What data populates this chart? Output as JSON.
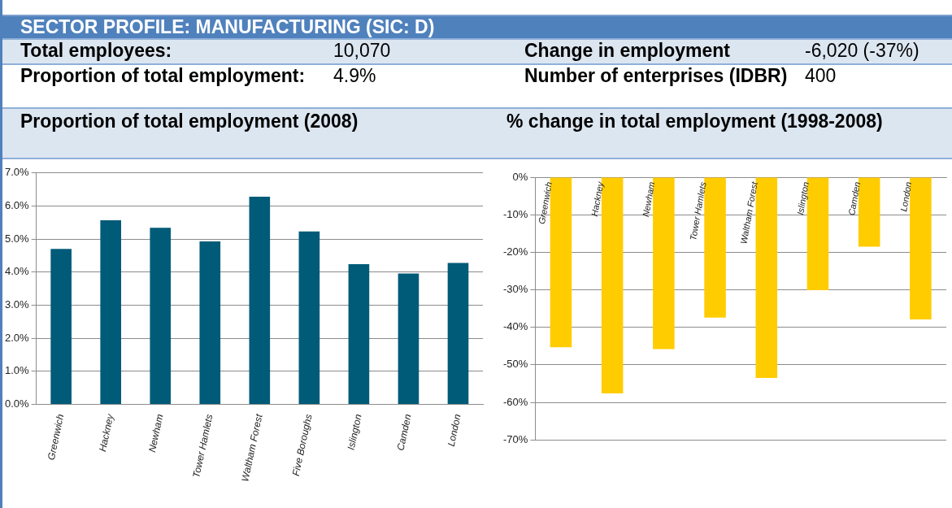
{
  "chart_data": [
    {
      "type": "other",
      "title": "SECTOR PROFILE: MANUFACTURING (SIC: D)",
      "annotations": [
        "Total employees:",
        "10,070",
        "Change in employment",
        "-6,020 (-37%)",
        "Proportion of total employment:",
        "4.9%",
        "Number of enterprises (IDBR)",
        "400"
      ]
    },
    {
      "type": "bar",
      "title": "Proportion of total employment (2008)",
      "categories": [
        "Greenwich",
        "Hackney",
        "Newham",
        "Tower Hamlets",
        "Waltham Forest",
        "Five Boroughs",
        "Islington",
        "Camden",
        "London"
      ],
      "values": [
        4.7,
        5.57,
        5.34,
        4.93,
        6.28,
        5.23,
        4.24,
        3.96,
        4.28
      ],
      "color": "#005b78",
      "ylim": [
        0,
        7
      ],
      "yticks": [
        {
          "value": 0,
          "label": "0.0%"
        },
        {
          "value": 1,
          "label": "1.0%"
        },
        {
          "value": 2,
          "label": "2.0%"
        },
        {
          "value": 3,
          "label": "3.0%"
        },
        {
          "value": 4,
          "label": "4.0%"
        },
        {
          "value": 5,
          "label": "5.0%"
        },
        {
          "value": 6,
          "label": "6.0%"
        },
        {
          "value": 7,
          "label": "7.0%"
        }
      ],
      "grid": "y",
      "legend": false
    },
    {
      "type": "bar",
      "title": "% change in total employment (1998-2008)",
      "categories": [
        "Greenwich",
        "Hackney",
        "Newham",
        "Tower Hamlets",
        "Waltham Forest",
        "Islington",
        "Camden",
        "London"
      ],
      "values": [
        -45.3,
        -57.6,
        -45.8,
        -37.4,
        -53.5,
        -30.1,
        -18.5,
        -37.9
      ],
      "color": "#ffcc00",
      "ylim": [
        -70,
        0
      ],
      "yticks": [
        {
          "value": -70,
          "label": "-70%"
        },
        {
          "value": -60,
          "label": "-60%"
        },
        {
          "value": -50,
          "label": "-50%"
        },
        {
          "value": -40,
          "label": "-40%"
        },
        {
          "value": -30,
          "label": "-30%"
        },
        {
          "value": -20,
          "label": "-20%"
        },
        {
          "value": -10,
          "label": "-10%"
        },
        {
          "value": 0,
          "label": "0%"
        }
      ],
      "grid": "y",
      "legend": false
    }
  ]
}
